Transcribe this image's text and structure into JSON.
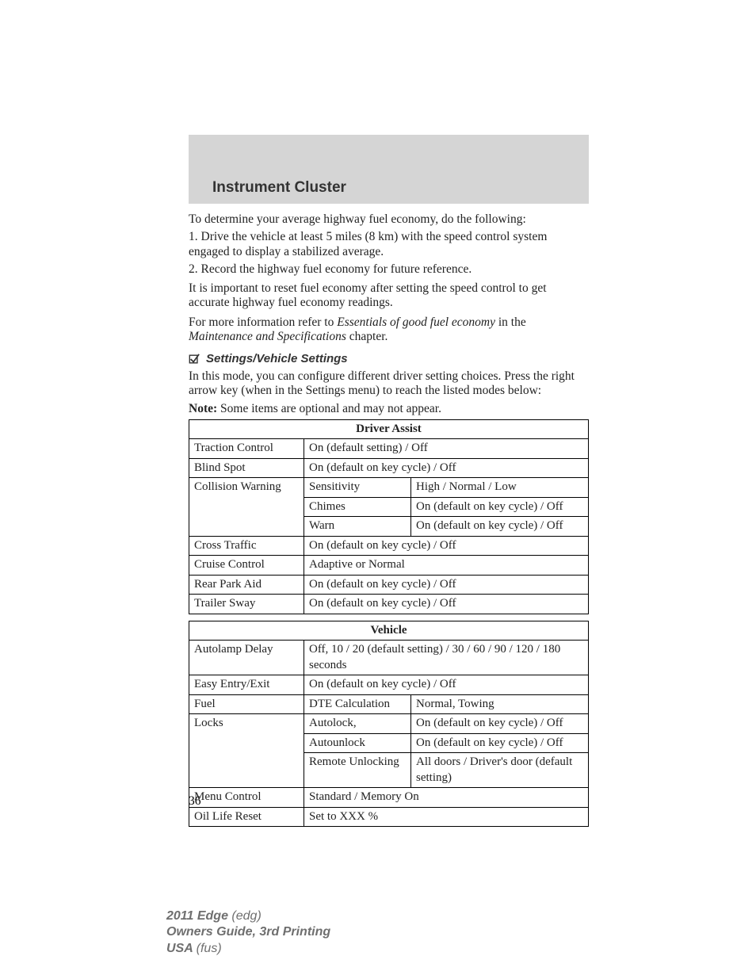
{
  "header": {
    "title": "Instrument Cluster"
  },
  "body": {
    "p1": "To determine your average highway fuel economy, do the following:",
    "p2": "1. Drive the vehicle at least 5 miles (8 km) with the speed control system engaged to display a stabilized average.",
    "p3": "2. Record the highway fuel economy for future reference.",
    "p4": "It is important to reset fuel economy after setting the speed control to get accurate highway fuel economy readings.",
    "p5a": "For more information refer to ",
    "p5b": "Essentials of good fuel economy",
    "p5c": " in the ",
    "p5d": "Maintenance and Specifications",
    "p5e": " chapter.",
    "subheading": "Settings/Vehicle Settings",
    "p6": "In this mode, you can configure different driver setting choices. Press the right arrow key (when in the Settings menu) to reach the listed modes below:",
    "note_label": "Note:",
    "note_text": " Some items are optional and may not appear."
  },
  "tables": {
    "driver_assist": {
      "header": "Driver Assist",
      "rows": [
        {
          "a": "Traction Control",
          "bc": "On (default setting) / Off"
        },
        {
          "a": "Blind Spot",
          "bc": "On (default on key cycle) / Off"
        },
        {
          "a": "Collision Warning",
          "a_rowspan": 3,
          "b": "Sensitivity",
          "c": "High / Normal / Low"
        },
        {
          "b": "Chimes",
          "c": "On (default on key cycle) / Off"
        },
        {
          "b": "Warn",
          "c": "On (default on key cycle) / Off"
        },
        {
          "a": "Cross Traffic",
          "bc": "On (default on key cycle) / Off"
        },
        {
          "a": "Cruise Control",
          "bc": "Adaptive or Normal"
        },
        {
          "a": "Rear Park Aid",
          "bc": "On (default on key cycle) / Off"
        },
        {
          "a": "Trailer Sway",
          "bc": "On (default on key cycle) / Off"
        }
      ]
    },
    "vehicle": {
      "header": "Vehicle",
      "rows": [
        {
          "a": "Autolamp Delay",
          "bc": "Off, 10 / 20 (default setting) / 30 / 60 / 90 / 120 / 180 seconds"
        },
        {
          "a": "Easy Entry/Exit",
          "bc": "On (default on key cycle) / Off"
        },
        {
          "a": "Fuel",
          "b": "DTE Calculation",
          "c": "Normal, Towing"
        },
        {
          "a": "Locks",
          "a_rowspan": 3,
          "b": "Autolock,",
          "c": "On (default on key cycle) / Off"
        },
        {
          "b": "Autounlock",
          "c": "On (default on key cycle) / Off"
        },
        {
          "b": "Remote Unlocking",
          "c": "All doors / Driver's door (default setting)"
        },
        {
          "a": "Menu Control",
          "bc": "Standard / Memory On"
        },
        {
          "a": "Oil Life Reset",
          "bc": "Set to XXX %"
        }
      ]
    }
  },
  "page_number": "36",
  "footer": {
    "l1a": "2011 Edge ",
    "l1b": "(edg)",
    "l2": "Owners Guide, 3rd Printing",
    "l3a": "USA ",
    "l3b": "(fus)"
  },
  "style": {
    "header_bg": "#d5d5d5",
    "text_color": "#222222",
    "footer_color": "#6f6f6f",
    "border_color": "#000000"
  }
}
